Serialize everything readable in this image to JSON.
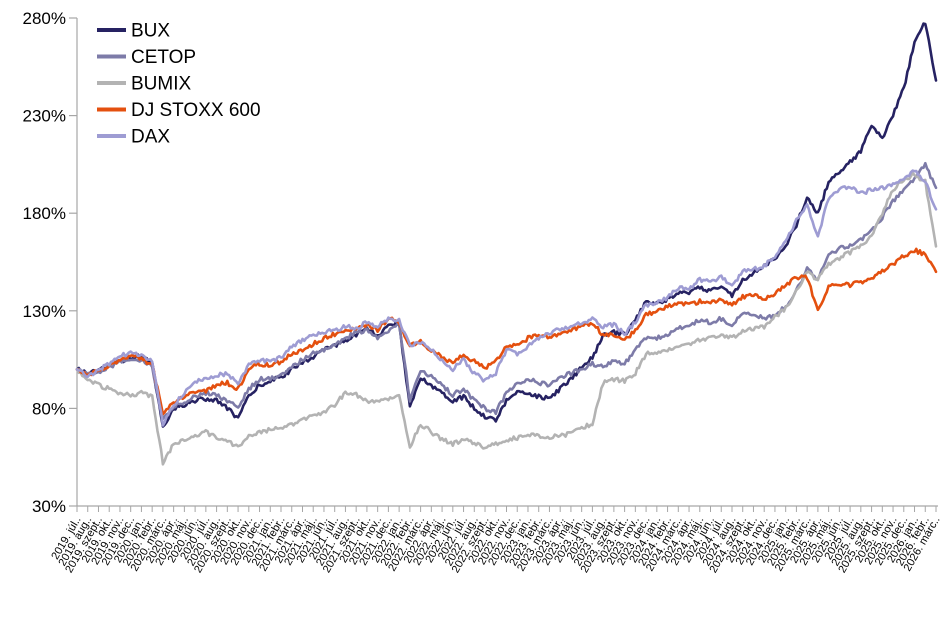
{
  "colors": {
    "background": "#ffffff",
    "axis": "#a6a6a6",
    "text": "#000000"
  },
  "chart_data": {
    "type": "line",
    "title": "",
    "xlabel": "",
    "ylabel": "",
    "grid": "off",
    "legend_position": "top-left",
    "ylim": [
      30,
      280
    ],
    "y_axis": {
      "ticks": [
        {
          "value": 280,
          "label": "280%"
        },
        {
          "value": 230,
          "label": "230%"
        },
        {
          "value": 180,
          "label": "180%"
        },
        {
          "value": 130,
          "label": "130%"
        },
        {
          "value": 80,
          "label": "80%"
        },
        {
          "value": 30,
          "label": "30%"
        }
      ]
    },
    "x_labels": [
      "2019. júl..",
      "2019. aug..",
      "2019. szept..",
      "2019. okt..",
      "2019. nov..",
      "2019. dec..",
      "2020. jan..",
      "2020. febr..",
      "2020. márc..",
      "2020. ápr..",
      "2020. máj..",
      "2020. jún..",
      "2020. júl..",
      "2020. aug..",
      "2020. szept..",
      "2020. okt..",
      "2020. nov..",
      "2020. dec..",
      "2021. jan..",
      "2021. febr..",
      "2021. márc..",
      "2021. ápr..",
      "2021. máj..",
      "2021. jún..",
      "2021. júl..",
      "2021. aug..",
      "2021. szept..",
      "2021. okt..",
      "2021. nov..",
      "2021. dec..",
      "2022. jan..",
      "2022. febr..",
      "2022. márc..",
      "2022. ápr..",
      "2022. máj..",
      "2022. jún..",
      "2022. júl..",
      "2022. aug..",
      "2022. szept..",
      "2022. okt..",
      "2022. nov..",
      "2022. dec..",
      "2023. jan..",
      "2023. febr..",
      "2023. márc..",
      "2023. ápr..",
      "2023. máj..",
      "2023. jún..",
      "2023. júl..",
      "2023. aug..",
      "2023. szept..",
      "2023. okt..",
      "2023. nov..",
      "2023. dec..",
      "2024. jan..",
      "2024. febr..",
      "2024. márc..",
      "2024. ápr..",
      "2024. máj..",
      "2024. jún..",
      "2024. júl..",
      "2024. aug..",
      "2024. szept..",
      "2024. okt..",
      "2024. nov..",
      "2024. dec..",
      "2025. jan..",
      "2025. febr..",
      "2025. márc..",
      "2025. ápr..",
      "2025. máj..",
      "2025. jún..",
      "2025. júl..",
      "2025. aug..",
      "2025. szept..",
      "2025. okt..",
      "2025. nov..",
      "2025. dec..",
      "2026. jan..",
      "2026. febr..",
      "2026. márc.."
    ],
    "series": [
      {
        "name": "BUX",
        "color": "#262262",
        "values": [
          100,
          98,
          99,
          102,
          104,
          106,
          107,
          103,
          70,
          80,
          82,
          84,
          85,
          84,
          80,
          75,
          86,
          92,
          94,
          96,
          100,
          104,
          106,
          110,
          112,
          115,
          118,
          121,
          117,
          122,
          124,
          80,
          96,
          92,
          88,
          84,
          86,
          80,
          76,
          74,
          84,
          88,
          88,
          86,
          85,
          90,
          95,
          101,
          106,
          117,
          119,
          118,
          125,
          135,
          134,
          136,
          139,
          139,
          142,
          140,
          143,
          138,
          146,
          149,
          153,
          157,
          163,
          174,
          188,
          180,
          196,
          201,
          206,
          212,
          225,
          218,
          230,
          244,
          268,
          278,
          248
        ]
      },
      {
        "name": "CETOP",
        "color": "#7d7ba8",
        "values": [
          100,
          97,
          99,
          101,
          104,
          105,
          105,
          101,
          74,
          81,
          83,
          86,
          88,
          87,
          84,
          80,
          90,
          95,
          95,
          98,
          101,
          105,
          108,
          110,
          113,
          116,
          119,
          120,
          116,
          120,
          124,
          84,
          100,
          96,
          92,
          87,
          90,
          84,
          80,
          78,
          88,
          93,
          95,
          93,
          92,
          96,
          98,
          100,
          103,
          101,
          104,
          103,
          110,
          116,
          116,
          118,
          121,
          123,
          125,
          124,
          126,
          123,
          128,
          128,
          126,
          128,
          132,
          140,
          152,
          146,
          158,
          162,
          163,
          166,
          171,
          178,
          186,
          192,
          197,
          205,
          193
        ]
      },
      {
        "name": "BUMIX",
        "color": "#b3b3b3",
        "values": [
          100,
          94,
          92,
          90,
          88,
          87,
          88,
          86,
          52,
          62,
          64,
          66,
          68,
          65,
          63,
          60,
          66,
          68,
          69,
          70,
          72,
          74,
          76,
          78,
          82,
          88,
          87,
          84,
          83,
          85,
          86,
          60,
          72,
          68,
          64,
          62,
          64,
          62,
          60,
          62,
          64,
          65,
          66,
          66,
          65,
          66,
          67,
          70,
          72,
          93,
          95,
          94,
          98,
          108,
          108,
          110,
          112,
          113,
          115,
          116,
          118,
          116,
          120,
          121,
          122,
          127,
          131,
          140,
          150,
          146,
          154,
          157,
          160,
          163,
          169,
          180,
          192,
          197,
          200,
          196,
          163
        ]
      },
      {
        "name": "DJ STOXX 600",
        "color": "#e4500f",
        "values": [
          100,
          97,
          100,
          102,
          105,
          107,
          106,
          102,
          78,
          83,
          86,
          89,
          89,
          92,
          93,
          90,
          100,
          103,
          102,
          104,
          108,
          110,
          113,
          116,
          118,
          120,
          121,
          123,
          120,
          126,
          124,
          112,
          114,
          110,
          106,
          103,
          108,
          104,
          101,
          104,
          112,
          112,
          116,
          118,
          116,
          119,
          120,
          122,
          124,
          117,
          118,
          115,
          120,
          128,
          130,
          132,
          134,
          133,
          135,
          134,
          136,
          133,
          137,
          138,
          136,
          139,
          143,
          147,
          147,
          130,
          142,
          144,
          143,
          145,
          146,
          150,
          154,
          158,
          161,
          159,
          150
        ]
      },
      {
        "name": "DAX",
        "color": "#9e9cd3",
        "values": [
          100,
          96,
          100,
          103,
          107,
          108,
          108,
          104,
          72,
          82,
          88,
          94,
          95,
          97,
          98,
          92,
          102,
          105,
          104,
          106,
          112,
          115,
          117,
          119,
          120,
          122,
          121,
          124,
          122,
          126,
          125,
          112,
          114,
          110,
          104,
          100,
          105,
          98,
          94,
          98,
          110,
          108,
          112,
          116,
          118,
          121,
          122,
          124,
          126,
          122,
          123,
          118,
          124,
          133,
          134,
          137,
          142,
          141,
          146,
          145,
          147,
          143,
          150,
          151,
          153,
          158,
          165,
          176,
          184,
          168,
          188,
          192,
          194,
          190,
          192,
          193,
          195,
          197,
          202,
          196,
          182
        ]
      }
    ]
  }
}
